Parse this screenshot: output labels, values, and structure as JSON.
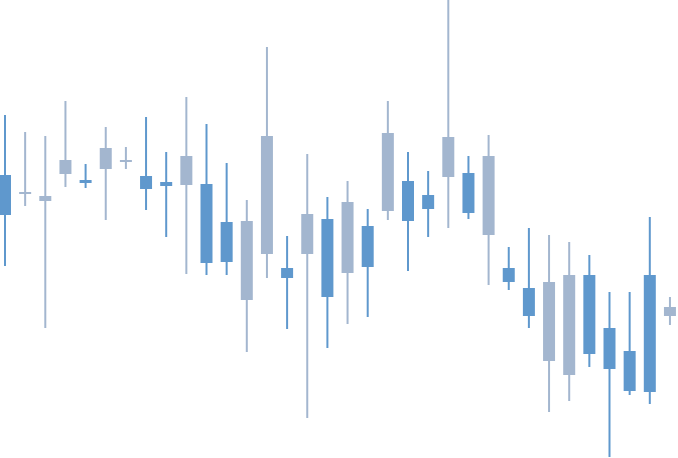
{
  "chart_data": {
    "type": "candlestick",
    "title": "",
    "xlabel": "",
    "ylabel": "",
    "ylim": [
      0,
      458
    ],
    "grid": false,
    "legend": "none",
    "colors": {
      "up": "#a3b6cf",
      "down": "#5f98cd"
    },
    "candles": [
      {
        "o": 283,
        "h": 343,
        "l": 192,
        "c": 243
      },
      {
        "o": 266,
        "h": 326,
        "l": 252,
        "c": 266
      },
      {
        "o": 257,
        "h": 322,
        "l": 130,
        "c": 262
      },
      {
        "o": 284,
        "h": 357,
        "l": 271,
        "c": 298
      },
      {
        "o": 278,
        "h": 294,
        "l": 270,
        "c": 275
      },
      {
        "o": 289,
        "h": 331,
        "l": 238,
        "c": 310
      },
      {
        "o": 298,
        "h": 311,
        "l": 289,
        "c": 298
      },
      {
        "o": 282,
        "h": 341,
        "l": 248,
        "c": 269
      },
      {
        "o": 276,
        "h": 306,
        "l": 221,
        "c": 272
      },
      {
        "o": 273,
        "h": 361,
        "l": 184,
        "c": 302
      },
      {
        "o": 274,
        "h": 334,
        "l": 183,
        "c": 195
      },
      {
        "o": 236,
        "h": 295,
        "l": 183,
        "c": 196
      },
      {
        "o": 158,
        "h": 258,
        "l": 106,
        "c": 237
      },
      {
        "o": 204,
        "h": 411,
        "l": 180,
        "c": 322
      },
      {
        "o": 190,
        "h": 222,
        "l": 129,
        "c": 180
      },
      {
        "o": 204,
        "h": 304,
        "l": 40,
        "c": 244
      },
      {
        "o": 239,
        "h": 261,
        "l": 110,
        "c": 161
      },
      {
        "o": 185,
        "h": 277,
        "l": 134,
        "c": 256
      },
      {
        "o": 232,
        "h": 249,
        "l": 141,
        "c": 191
      },
      {
        "o": 247,
        "h": 357,
        "l": 238,
        "c": 325
      },
      {
        "o": 277,
        "h": 306,
        "l": 187,
        "c": 237
      },
      {
        "o": 263,
        "h": 287,
        "l": 221,
        "c": 249
      },
      {
        "o": 281,
        "h": 458,
        "l": 230,
        "c": 321
      },
      {
        "o": 285,
        "h": 302,
        "l": 239,
        "c": 245
      },
      {
        "o": 223,
        "h": 323,
        "l": 173,
        "c": 302
      },
      {
        "o": 190,
        "h": 211,
        "l": 168,
        "c": 176
      },
      {
        "o": 170,
        "h": 230,
        "l": 130,
        "c": 142
      },
      {
        "o": 97,
        "h": 223,
        "l": 46,
        "c": 176
      },
      {
        "o": 83,
        "h": 216,
        "l": 57,
        "c": 183
      },
      {
        "o": 183,
        "h": 203,
        "l": 91,
        "c": 104
      },
      {
        "o": 130,
        "h": 166,
        "l": 1,
        "c": 89
      },
      {
        "o": 107,
        "h": 166,
        "l": 63,
        "c": 67
      },
      {
        "o": 183,
        "h": 241,
        "l": 54,
        "c": 66
      },
      {
        "o": 142,
        "h": 161,
        "l": 133,
        "c": 151
      }
    ]
  }
}
